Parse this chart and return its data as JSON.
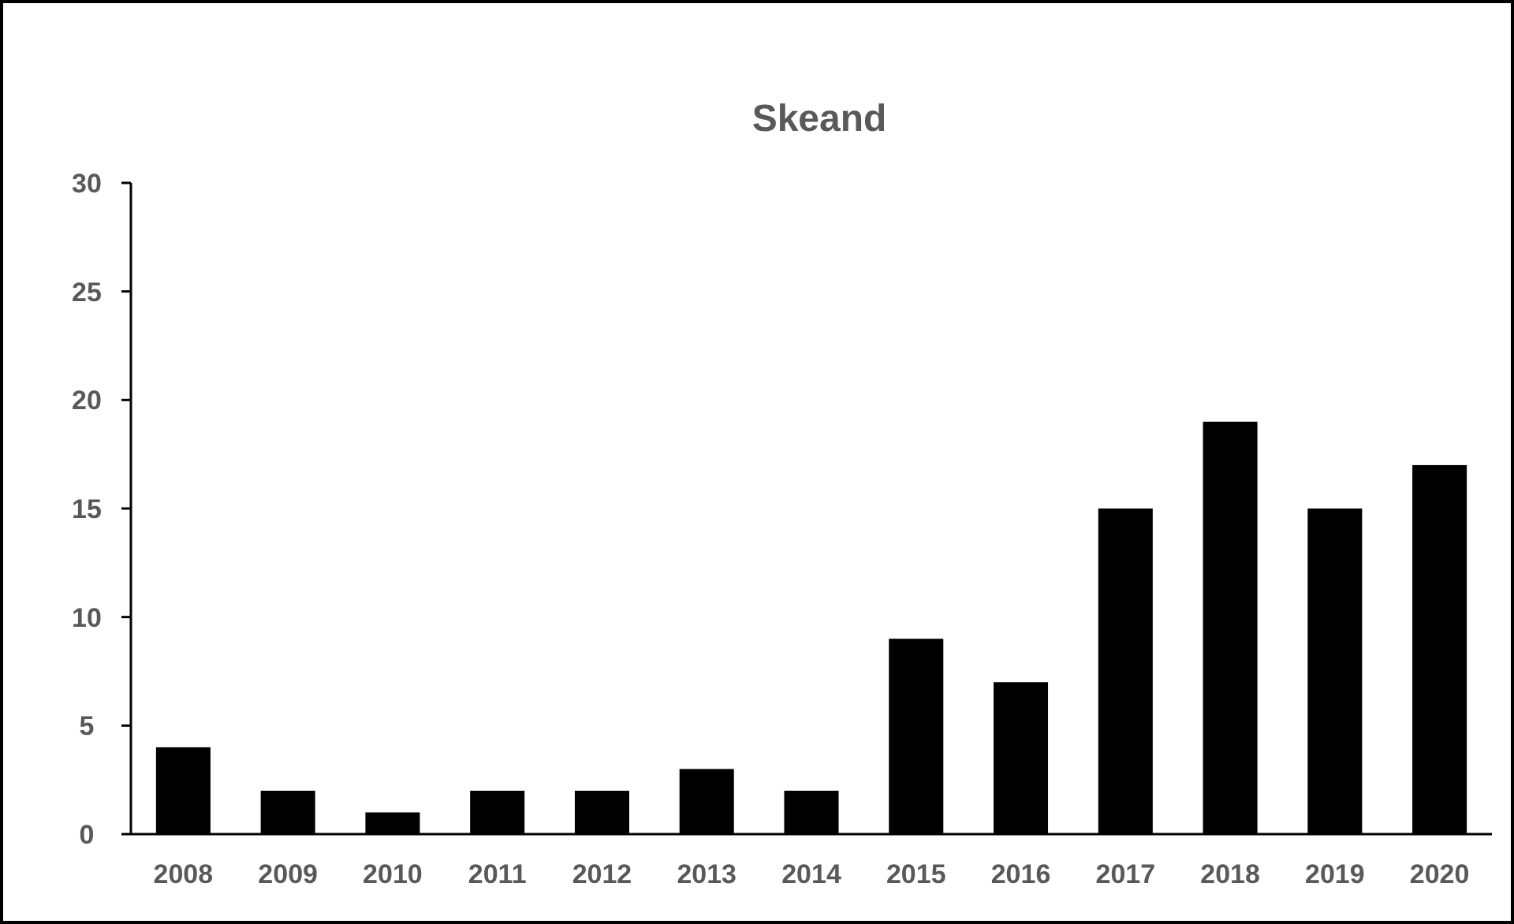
{
  "chart_data": {
    "type": "bar",
    "title": "Skeand",
    "categories": [
      "2008",
      "2009",
      "2010",
      "2011",
      "2012",
      "2013",
      "2014",
      "2015",
      "2016",
      "2017",
      "2018",
      "2019",
      "2020"
    ],
    "values": [
      4,
      2,
      1,
      2,
      2,
      3,
      2,
      9,
      7,
      15,
      19,
      15,
      17
    ],
    "color": "#000000",
    "ylim": [
      0,
      30
    ],
    "yticks": [
      0,
      5,
      10,
      15,
      20,
      25,
      30
    ],
    "grid": false
  }
}
